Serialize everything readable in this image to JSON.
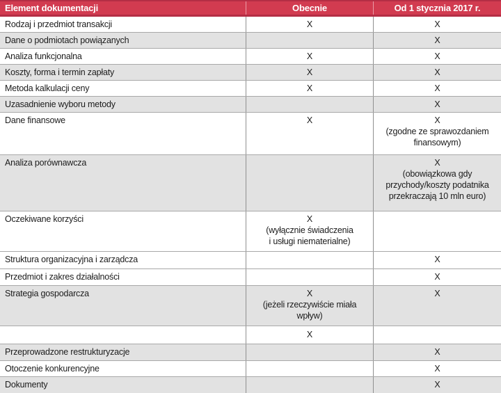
{
  "colors": {
    "header_bg": "#d23b50",
    "header_border": "#b42e45",
    "header_text": "#ffffff",
    "row_alt_bg": "#e2e2e2",
    "row_bg": "#ffffff",
    "horizontal_line": "#a8a8a8",
    "vertical_line": "#8f8f8f",
    "text": "#1c1c1c"
  },
  "table": {
    "columns": {
      "element": "Element dokumentacji",
      "obecnie": "Obecnie",
      "od2017": "Od 1 stycznia 2017 r."
    },
    "rows": [
      {
        "element": "Rodzaj i przedmiot transakcji",
        "obecnie": "X",
        "od2017": "X",
        "shade": "white"
      },
      {
        "element": "Dane o podmiotach powiązanych",
        "obecnie": "",
        "od2017": "X",
        "shade": "gray"
      },
      {
        "element": "Analiza funkcjonalna",
        "obecnie": "X",
        "od2017": "X",
        "shade": "white"
      },
      {
        "element": "Koszty, forma i termin zapłaty",
        "obecnie": "X",
        "od2017": "X",
        "shade": "gray"
      },
      {
        "element": "Metoda kalkulacji ceny",
        "obecnie": "X",
        "od2017": "X",
        "shade": "white"
      },
      {
        "element": "Uzasadnienie wyboru metody",
        "obecnie": "",
        "od2017": "X",
        "shade": "gray"
      },
      {
        "element": "Dane finansowe",
        "obecnie": "X",
        "od2017": "X\n(zgodne ze sprawozdaniem\nfinansowym)",
        "shade": "white"
      },
      {
        "element": "Analiza porównawcza",
        "obecnie": "",
        "od2017": "X\n(obowiązkowa gdy\nprzychody/koszty podatnika\nprzekraczają 10 mln euro)",
        "shade": "gray"
      },
      {
        "element": "Oczekiwane korzyści",
        "obecnie": "X\n(wyłącznie świadczenia\ni usługi niematerialne)",
        "od2017": "",
        "shade": "white"
      },
      {
        "element": "Struktura organizacyjna i zarządcza",
        "obecnie": "",
        "od2017": "X",
        "shade": "white"
      },
      {
        "element": "Przedmiot i zakres działalności",
        "obecnie": "",
        "od2017": "X",
        "shade": "white"
      },
      {
        "element": "Strategia gospodarcza",
        "obecnie": "X\n(jeżeli rzeczywiście miała\nwpływ)",
        "od2017": "X",
        "shade": "gray"
      },
      {
        "element": "",
        "obecnie": "X",
        "od2017": "",
        "shade": "white"
      },
      {
        "element": "Przeprowadzone restrukturyzacje",
        "obecnie": "",
        "od2017": "X",
        "shade": "gray"
      },
      {
        "element": "Otoczenie konkurencyjne",
        "obecnie": "",
        "od2017": "X",
        "shade": "white"
      },
      {
        "element": "Dokumenty",
        "obecnie": "",
        "od2017": "X",
        "shade": "gray"
      }
    ]
  }
}
